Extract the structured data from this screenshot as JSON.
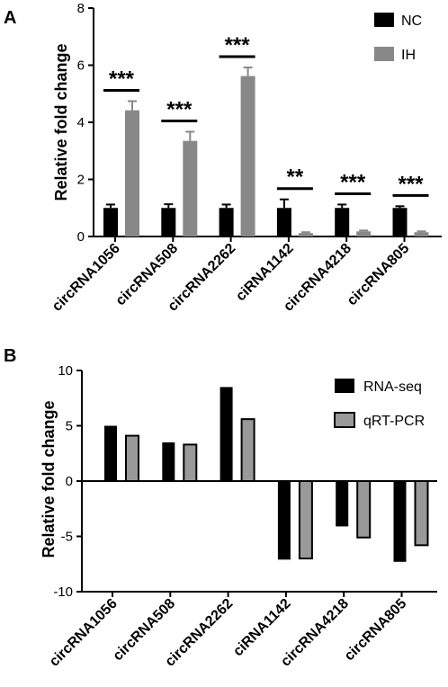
{
  "chart_data": [
    {
      "panel": "A",
      "type": "bar",
      "ylabel": "Relative fold change",
      "ylim": [
        0,
        8
      ],
      "yticks": [
        0,
        2,
        4,
        6,
        8
      ],
      "categories": [
        "circRNA1056",
        "circRNA508",
        "circRNA2262",
        "ciRNA1142",
        "circRNA4218",
        "circRNA805"
      ],
      "series": [
        {
          "name": "NC",
          "color": "#000000",
          "values": [
            1.0,
            1.0,
            1.0,
            1.0,
            1.0,
            1.0
          ],
          "errors": [
            0.12,
            0.13,
            0.12,
            0.3,
            0.12,
            0.06
          ]
        },
        {
          "name": "IH",
          "color": "#888888",
          "values": [
            4.42,
            3.35,
            5.62,
            0.12,
            0.18,
            0.15
          ],
          "errors": [
            0.32,
            0.32,
            0.3,
            0.03,
            0.03,
            0.03
          ]
        }
      ],
      "significance": [
        "***",
        "***",
        "***",
        "**",
        "***",
        "***"
      ],
      "legend_position": "top-right",
      "grid": false
    },
    {
      "panel": "B",
      "type": "bar",
      "ylabel": "Relative fold change",
      "ylim": [
        -10,
        10
      ],
      "yticks": [
        -10,
        -5,
        0,
        5,
        10
      ],
      "categories": [
        "circRNA1056",
        "circRNA508",
        "circRNA2262",
        "ciRNA1142",
        "circRNA4218",
        "circRNA805"
      ],
      "series": [
        {
          "name": "RNA-seq",
          "color": "#000000",
          "values": [
            5.0,
            3.5,
            8.5,
            -7.1,
            -4.1,
            -7.3
          ]
        },
        {
          "name": "qRT-PCR",
          "color": "#999999",
          "values": [
            4.1,
            3.3,
            5.6,
            -7.0,
            -5.1,
            -5.8
          ]
        }
      ],
      "legend_position": "top-right",
      "grid": false
    }
  ]
}
